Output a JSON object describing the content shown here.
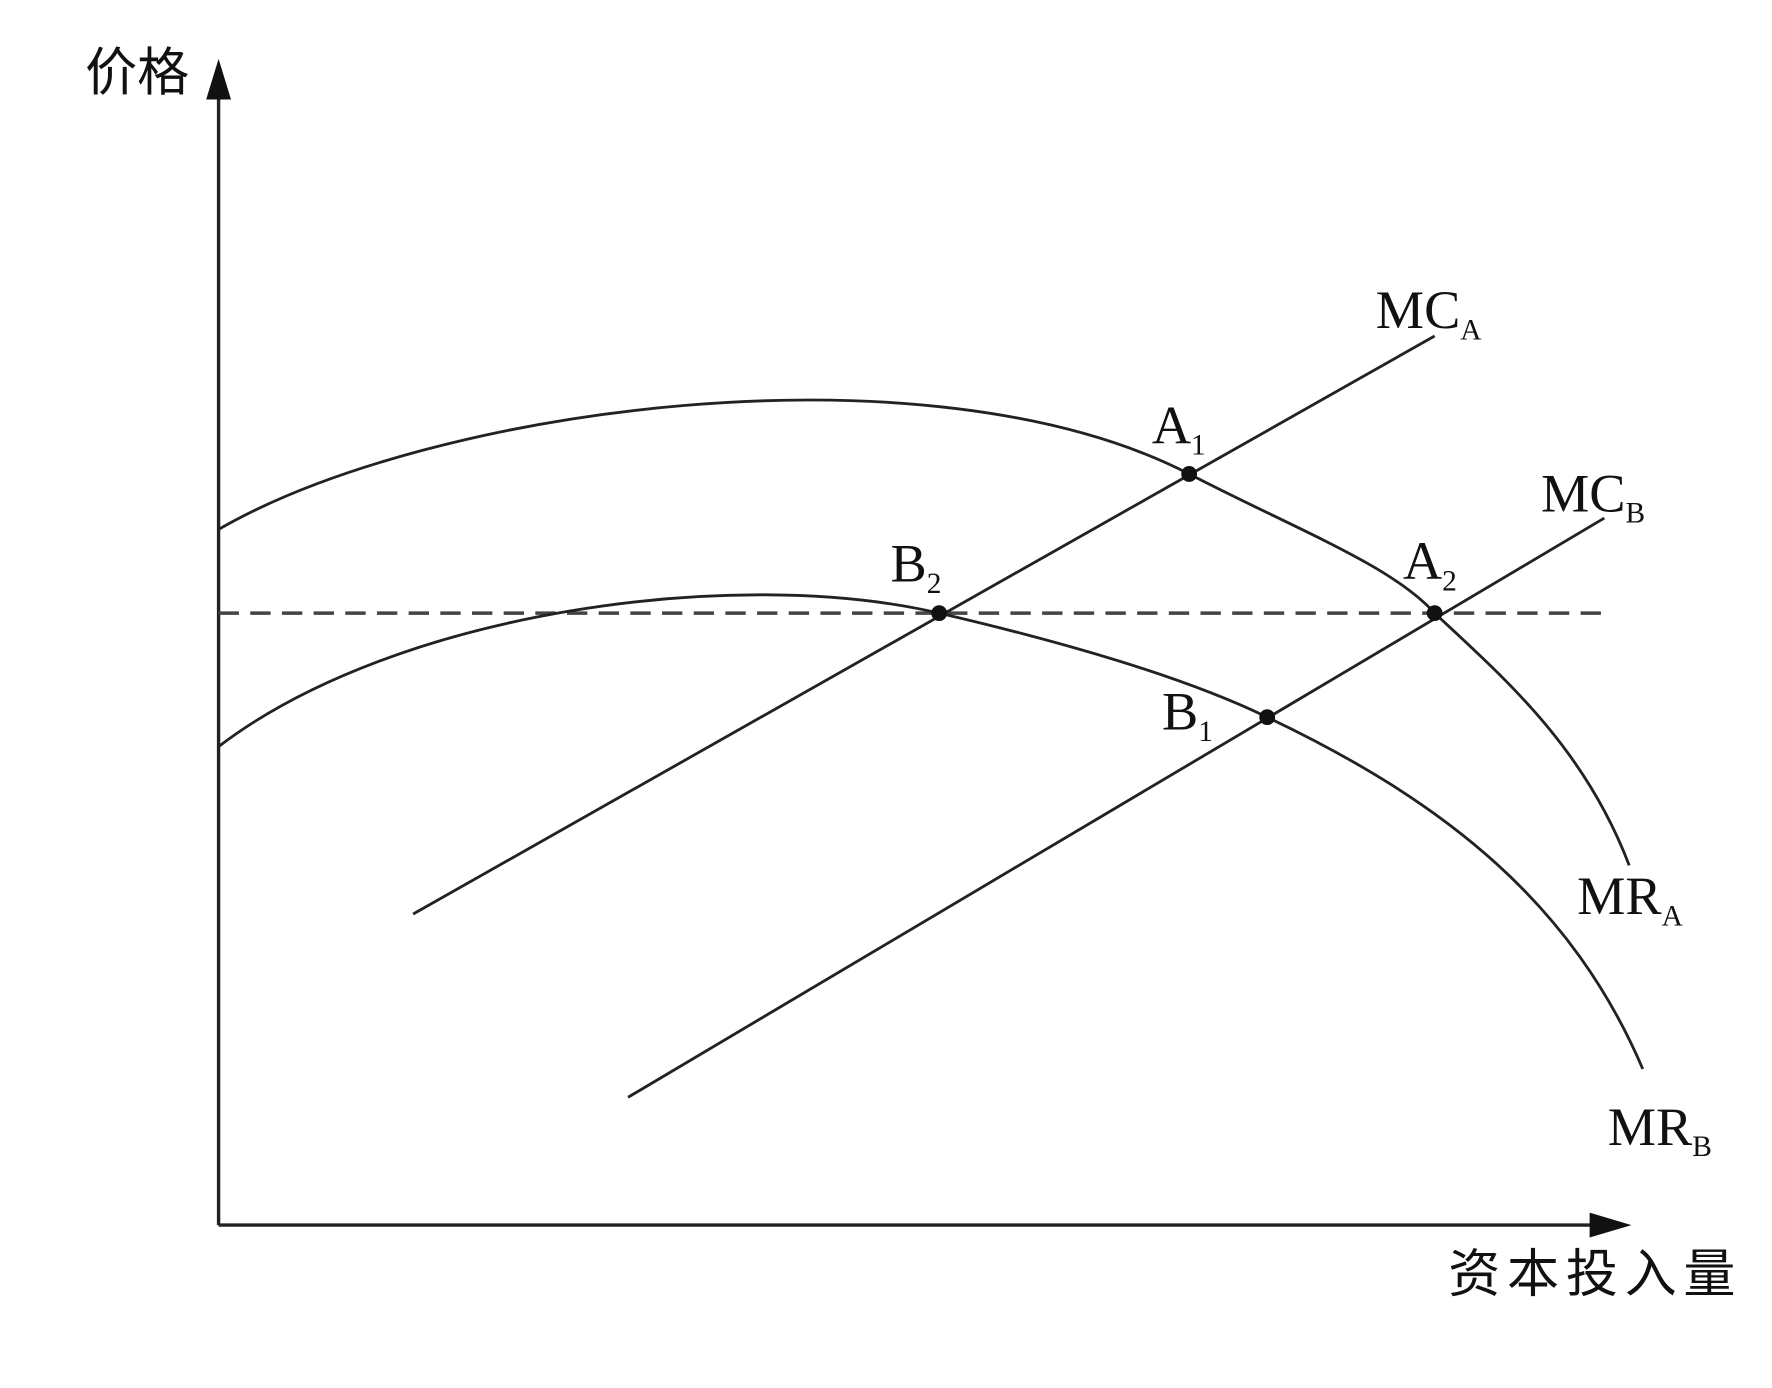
{
  "axes": {
    "y_label": "价格",
    "x_label": "资本投入量"
  },
  "curves": [
    {
      "main": "MC",
      "sub": "A"
    },
    {
      "main": "MC",
      "sub": "B"
    },
    {
      "main": "MR",
      "sub": "A"
    },
    {
      "main": "MR",
      "sub": "B"
    }
  ],
  "points": [
    {
      "main": "A",
      "sub": "1"
    },
    {
      "main": "A",
      "sub": "2"
    },
    {
      "main": "B",
      "sub": "1"
    },
    {
      "main": "B",
      "sub": "2"
    }
  ]
}
